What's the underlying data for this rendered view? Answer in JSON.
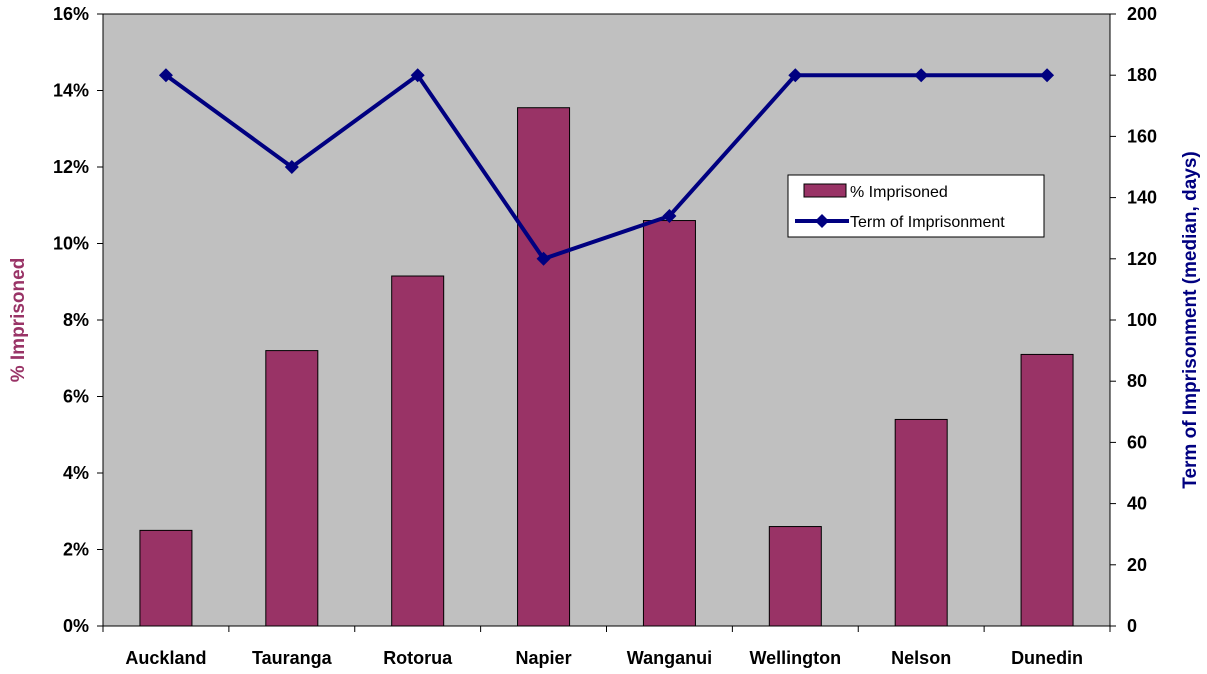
{
  "chart_data": {
    "type": "bar",
    "categories": [
      "Auckland",
      "Tauranga",
      "Rotorua",
      "Napier",
      "Wanganui",
      "Wellington",
      "Nelson",
      "Dunedin"
    ],
    "series": [
      {
        "name": "% Imprisoned",
        "type": "bar",
        "axis": "left",
        "values": [
          2.5,
          7.2,
          9.15,
          13.55,
          10.6,
          2.6,
          5.4,
          7.1
        ]
      },
      {
        "name": "Term of Imprisonment",
        "type": "line",
        "axis": "right",
        "values": [
          180,
          150,
          180,
          120,
          134,
          180,
          180,
          180
        ]
      }
    ],
    "ylabel": "% Imprisoned",
    "y2label": "Term of Imprisonment (median, days)",
    "ylim": [
      0,
      16
    ],
    "y2lim": [
      0,
      200
    ],
    "yticks": [
      "0%",
      "2%",
      "4%",
      "6%",
      "8%",
      "10%",
      "12%",
      "14%",
      "16%"
    ],
    "y2ticks": [
      "0",
      "20",
      "40",
      "60",
      "80",
      "100",
      "120",
      "140",
      "160",
      "180",
      "200"
    ],
    "legend_position": "upper-right inside plot",
    "grid": false,
    "colors": {
      "bar": "#993366",
      "line": "#000080",
      "plot_background": "#c0c0c0",
      "left_axis_title": "#993366",
      "right_axis_title": "#000080"
    }
  }
}
